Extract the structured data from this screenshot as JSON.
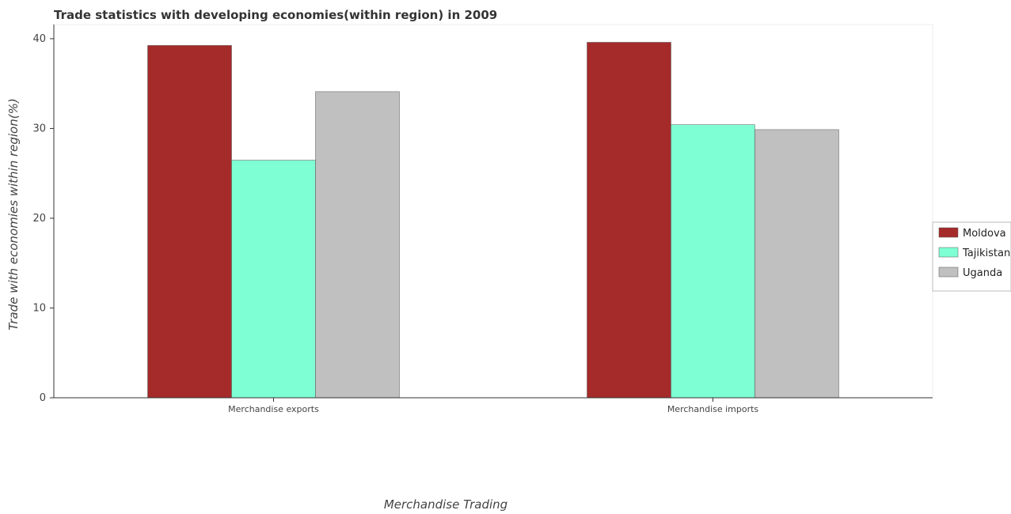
{
  "chart_data": {
    "type": "bar",
    "title": "Trade statistics with developing economies(within region) in 2009",
    "xlabel": "Merchandise Trading",
    "ylabel": "Trade with economies within region(%)",
    "categories": [
      "Merchandise exports",
      "Merchandise imports"
    ],
    "series": [
      {
        "name": "Moldova",
        "color": "#a52a2a",
        "values": [
          39.25,
          39.6
        ]
      },
      {
        "name": "Tajikistan",
        "color": "#7fffd4",
        "values": [
          26.47,
          30.42
        ]
      },
      {
        "name": "Uganda",
        "color": "#c0c0c0",
        "values": [
          34.1,
          29.87
        ]
      }
    ],
    "ylim": [
      0,
      41.58
    ],
    "yticks": [
      0,
      10,
      20,
      30,
      40
    ],
    "grid": false,
    "legend_position": "right"
  }
}
